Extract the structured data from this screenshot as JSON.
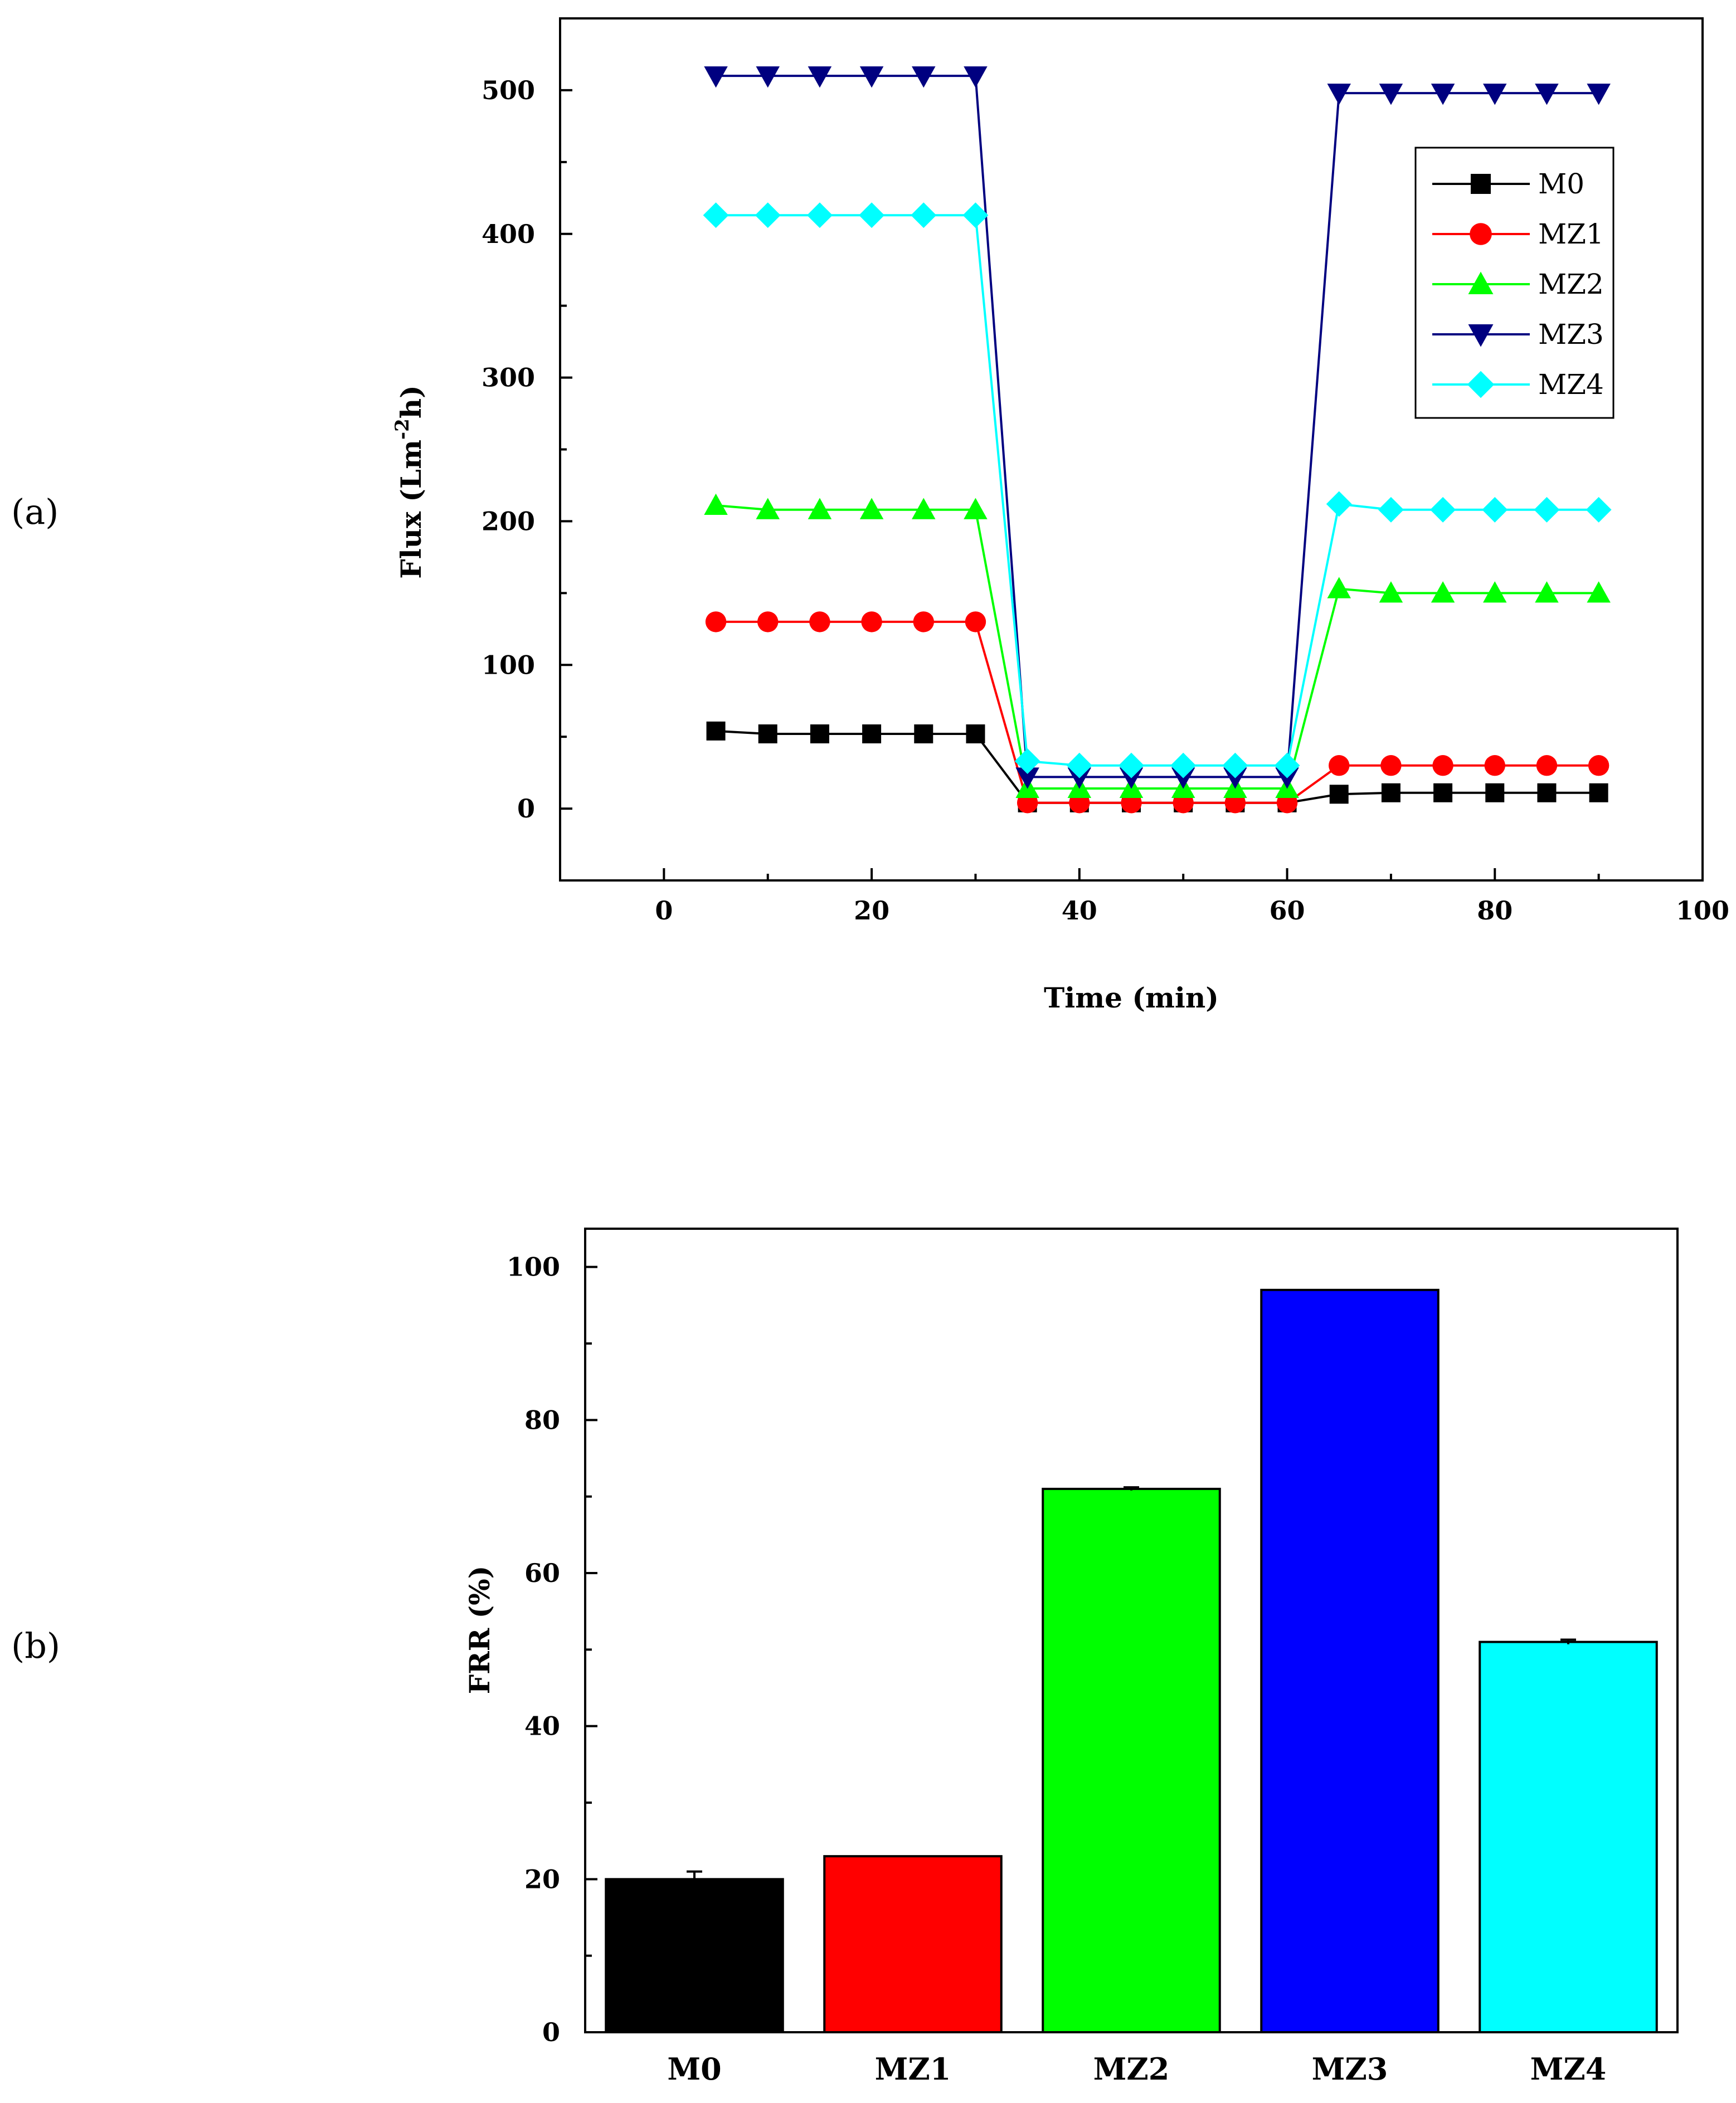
{
  "panels": {
    "a_label": "(a)",
    "b_label": "(b)"
  },
  "chart_data": [
    {
      "type": "line",
      "panel": "(a)",
      "xlabel": "Time (min)",
      "ylabel": "Flux (Lm⁻²h)",
      "ylabel_main": "Flux (Lm",
      "ylabel_sup": "-2",
      "ylabel_end": "h)",
      "xlim": [
        -10,
        100
      ],
      "ylim": [
        -50,
        550
      ],
      "xticks": [
        0,
        20,
        40,
        60,
        80,
        100
      ],
      "yticks": [
        0,
        100,
        200,
        300,
        400,
        500
      ],
      "x": [
        5,
        10,
        15,
        20,
        25,
        30,
        35,
        40,
        45,
        50,
        55,
        60,
        65,
        70,
        75,
        80,
        85,
        90
      ],
      "legend_position": "top-right",
      "series": [
        {
          "name": "M0",
          "color": "#000000",
          "marker": "square",
          "values": [
            54,
            52,
            52,
            52,
            52,
            52,
            4,
            4,
            4,
            4,
            4,
            4,
            10,
            11,
            11,
            11,
            11,
            11
          ]
        },
        {
          "name": "MZ1",
          "color": "#ff0000",
          "marker": "circle",
          "values": [
            130,
            130,
            130,
            130,
            130,
            130,
            4,
            4,
            4,
            4,
            4,
            4,
            30,
            30,
            30,
            30,
            30,
            30
          ]
        },
        {
          "name": "MZ2",
          "color": "#00ff00",
          "marker": "triangle-up",
          "values": [
            211,
            208,
            208,
            208,
            208,
            208,
            14,
            14,
            14,
            14,
            14,
            14,
            153,
            150,
            150,
            150,
            150,
            150
          ]
        },
        {
          "name": "MZ3",
          "color": "#000080",
          "marker": "triangle-down",
          "values": [
            510,
            510,
            510,
            510,
            510,
            510,
            22,
            22,
            22,
            22,
            22,
            22,
            498,
            498,
            498,
            498,
            498,
            498
          ]
        },
        {
          "name": "MZ4",
          "color": "#00ffff",
          "marker": "diamond",
          "values": [
            413,
            413,
            413,
            413,
            413,
            413,
            33,
            30,
            30,
            30,
            30,
            30,
            212,
            208,
            208,
            208,
            208,
            208
          ]
        }
      ]
    },
    {
      "type": "bar",
      "panel": "(b)",
      "xlabel": "",
      "ylabel": "FRR (%)",
      "ylim": [
        0,
        105
      ],
      "yticks": [
        0,
        20,
        40,
        60,
        80,
        100
      ],
      "categories": [
        "M0",
        "MZ1",
        "MZ2",
        "MZ3",
        "MZ4"
      ],
      "values": [
        20,
        23,
        71,
        97,
        51
      ],
      "errors": [
        1,
        0,
        0.2,
        0,
        0.3
      ],
      "colors": [
        "#000000",
        "#ff0000",
        "#00ff00",
        "#0000ff",
        "#00ffff"
      ]
    }
  ]
}
